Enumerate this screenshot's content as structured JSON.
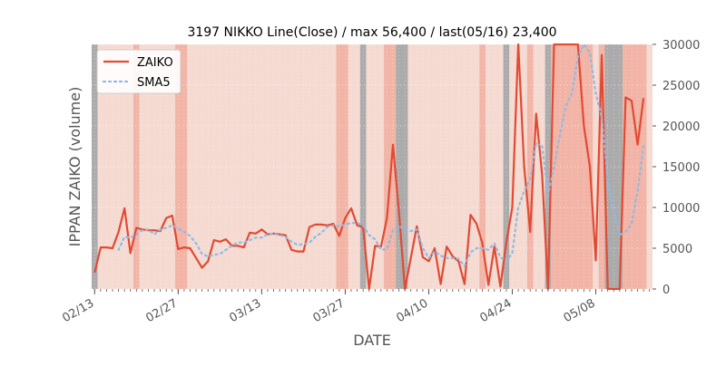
{
  "chart_data": {
    "type": "line",
    "title": "3197 NIKKO Line(Close) / max 56,400 / last(05/16) 23,400",
    "xlabel": "DATE",
    "ylabel": "IPPAN ZAIKO (volume)",
    "ylim": [
      0,
      30000
    ],
    "y_ticks": [
      0,
      5000,
      10000,
      15000,
      20000,
      25000,
      30000
    ],
    "y_tick_labels": [
      "0",
      "5000",
      "10000",
      "15000",
      "20000",
      "25000",
      "30000"
    ],
    "y_axis_side": "right",
    "x_start_date": "02/13",
    "x_end_date": "05/17",
    "x_tick_labels": [
      {
        "date": "02/13",
        "label": "02/13"
      },
      {
        "date": "02/27",
        "label": "02/27"
      },
      {
        "date": "03/13",
        "label": "03/13"
      },
      {
        "date": "03/27",
        "label": "03/27"
      },
      {
        "date": "04/10",
        "label": "04/10"
      },
      {
        "date": "04/24",
        "label": "04/24"
      },
      {
        "date": "05/08",
        "label": "05/08"
      }
    ],
    "legend_position": "top-left",
    "grid": true,
    "series": [
      {
        "name": "ZAIKO",
        "style": "solid",
        "color": "#E24A33",
        "points": [
          [
            "02/13",
            2000
          ],
          [
            "02/14",
            5100
          ],
          [
            "02/15",
            5100
          ],
          [
            "02/16",
            5000
          ],
          [
            "02/17",
            7000
          ],
          [
            "02/18",
            9900
          ],
          [
            "02/19",
            4400
          ],
          [
            "02/20",
            7500
          ],
          [
            "02/21",
            7300
          ],
          [
            "02/22",
            7200
          ],
          [
            "02/23",
            7200
          ],
          [
            "02/24",
            7100
          ],
          [
            "02/25",
            8700
          ],
          [
            "02/26",
            9000
          ],
          [
            "02/27",
            4900
          ],
          [
            "02/28",
            5100
          ],
          [
            "03/01",
            5000
          ],
          [
            "03/02",
            3800
          ],
          [
            "03/03",
            2600
          ],
          [
            "03/04",
            3400
          ],
          [
            "03/05",
            6000
          ],
          [
            "03/06",
            5800
          ],
          [
            "03/07",
            6100
          ],
          [
            "03/08",
            5300
          ],
          [
            "03/09",
            5300
          ],
          [
            "03/10",
            5100
          ],
          [
            "03/11",
            6900
          ],
          [
            "03/12",
            6800
          ],
          [
            "03/13",
            7300
          ],
          [
            "03/14",
            6700
          ],
          [
            "03/15",
            6800
          ],
          [
            "03/16",
            6700
          ],
          [
            "03/17",
            6600
          ],
          [
            "03/18",
            4800
          ],
          [
            "03/19",
            4600
          ],
          [
            "03/20",
            4600
          ],
          [
            "03/21",
            7600
          ],
          [
            "03/22",
            7900
          ],
          [
            "03/23",
            7900
          ],
          [
            "03/24",
            7800
          ],
          [
            "03/25",
            8000
          ],
          [
            "03/26",
            6500
          ],
          [
            "03/27",
            8700
          ],
          [
            "03/28",
            9900
          ],
          [
            "03/29",
            7800
          ],
          [
            "03/30",
            7600
          ],
          [
            "03/31",
            0
          ],
          [
            "04/01",
            5300
          ],
          [
            "04/02",
            5200
          ],
          [
            "04/03",
            8700
          ],
          [
            "04/04",
            17700
          ],
          [
            "04/05",
            9500
          ],
          [
            "04/06",
            0
          ],
          [
            "04/07",
            3800
          ],
          [
            "04/08",
            7700
          ],
          [
            "04/09",
            3900
          ],
          [
            "04/10",
            3400
          ],
          [
            "04/11",
            5000
          ],
          [
            "04/12",
            600
          ],
          [
            "04/13",
            5200
          ],
          [
            "04/14",
            4000
          ],
          [
            "04/15",
            3400
          ],
          [
            "04/16",
            600
          ],
          [
            "04/17",
            9100
          ],
          [
            "04/18",
            8000
          ],
          [
            "04/19",
            5600
          ],
          [
            "04/20",
            500
          ],
          [
            "04/21",
            5200
          ],
          [
            "04/22",
            300
          ],
          [
            "04/23",
            5700
          ],
          [
            "04/24",
            10000
          ],
          [
            "04/25",
            30000
          ],
          [
            "04/26",
            15000
          ],
          [
            "04/27",
            7000
          ],
          [
            "04/28",
            21500
          ],
          [
            "04/29",
            14000
          ],
          [
            "04/30",
            0
          ],
          [
            "05/01",
            30000
          ],
          [
            "05/02",
            30000
          ],
          [
            "05/03",
            30000
          ],
          [
            "05/04",
            30000
          ],
          [
            "05/05",
            30000
          ],
          [
            "05/06",
            20000
          ],
          [
            "05/07",
            15000
          ],
          [
            "05/08",
            3500
          ],
          [
            "05/09",
            28700
          ],
          [
            "05/10",
            0
          ],
          [
            "05/11",
            0
          ],
          [
            "05/12",
            0
          ],
          [
            "05/13",
            23500
          ],
          [
            "05/14",
            23100
          ],
          [
            "05/15",
            17700
          ],
          [
            "05/16",
            23400
          ]
        ]
      },
      {
        "name": "SMA5",
        "style": "dotted",
        "color": "#8EBAE5",
        "points": [
          [
            "02/17",
            4800
          ],
          [
            "02/18",
            6400
          ],
          [
            "02/19",
            6300
          ],
          [
            "02/20",
            6700
          ],
          [
            "02/21",
            7200
          ],
          [
            "02/22",
            7300
          ],
          [
            "02/23",
            6700
          ],
          [
            "02/24",
            7300
          ],
          [
            "02/25",
            7500
          ],
          [
            "02/26",
            7800
          ],
          [
            "02/27",
            7400
          ],
          [
            "02/28",
            7000
          ],
          [
            "03/01",
            6500
          ],
          [
            "03/02",
            5600
          ],
          [
            "03/03",
            4300
          ],
          [
            "03/04",
            4000
          ],
          [
            "03/05",
            4200
          ],
          [
            "03/06",
            4300
          ],
          [
            "03/07",
            4800
          ],
          [
            "03/08",
            5300
          ],
          [
            "03/09",
            5700
          ],
          [
            "03/10",
            5700
          ],
          [
            "03/11",
            6000
          ],
          [
            "03/12",
            6300
          ],
          [
            "03/13",
            6300
          ],
          [
            "03/14",
            6700
          ],
          [
            "03/15",
            6800
          ],
          [
            "03/16",
            6600
          ],
          [
            "03/17",
            6400
          ],
          [
            "03/18",
            5800
          ],
          [
            "03/19",
            5400
          ],
          [
            "03/20",
            5500
          ],
          [
            "03/21",
            5700
          ],
          [
            "03/22",
            6400
          ],
          [
            "03/23",
            6900
          ],
          [
            "03/24",
            7600
          ],
          [
            "03/25",
            7800
          ],
          [
            "03/26",
            7700
          ],
          [
            "03/27",
            7900
          ],
          [
            "03/28",
            8100
          ],
          [
            "03/29",
            8100
          ],
          [
            "03/30",
            7800
          ],
          [
            "03/31",
            6600
          ],
          [
            "04/01",
            6100
          ],
          [
            "04/02",
            4800
          ],
          [
            "04/03",
            4900
          ],
          [
            "04/04",
            7200
          ],
          [
            "04/05",
            7700
          ],
          [
            "04/06",
            7300
          ],
          [
            "04/07",
            7100
          ],
          [
            "04/08",
            7300
          ],
          [
            "04/09",
            5000
          ],
          [
            "04/10",
            3800
          ],
          [
            "04/11",
            4600
          ],
          [
            "04/12",
            4100
          ],
          [
            "04/13",
            3800
          ],
          [
            "04/14",
            3800
          ],
          [
            "04/15",
            3700
          ],
          [
            "04/16",
            2800
          ],
          [
            "04/17",
            4500
          ],
          [
            "04/18",
            5000
          ],
          [
            "04/19",
            5000
          ],
          [
            "04/20",
            4800
          ],
          [
            "04/21",
            5600
          ],
          [
            "04/22",
            3900
          ],
          [
            "04/23",
            3400
          ],
          [
            "04/24",
            4400
          ],
          [
            "04/25",
            10000
          ],
          [
            "04/26",
            12000
          ],
          [
            "04/27",
            13500
          ],
          [
            "04/28",
            17900
          ],
          [
            "04/29",
            17500
          ],
          [
            "04/30",
            11500
          ],
          [
            "05/01",
            15000
          ],
          [
            "05/02",
            19000
          ],
          [
            "05/03",
            22500
          ],
          [
            "05/04",
            24000
          ],
          [
            "05/05",
            28500
          ],
          [
            "05/06",
            30000
          ],
          [
            "05/07",
            29000
          ],
          [
            "05/08",
            24000
          ],
          [
            "05/09",
            21000
          ],
          [
            "05/10",
            13500
          ],
          [
            "05/11",
            9500
          ],
          [
            "05/12",
            6600
          ],
          [
            "05/13",
            7000
          ],
          [
            "05/14",
            8000
          ],
          [
            "05/15",
            12000
          ],
          [
            "05/16",
            17500
          ]
        ]
      }
    ],
    "background_bands": [
      {
        "start": "02/13",
        "end": "02/13",
        "shade": "gray"
      },
      {
        "start": "02/14",
        "end": "02/19",
        "shade": "light"
      },
      {
        "start": "02/20",
        "end": "02/20",
        "shade": "medium"
      },
      {
        "start": "02/21",
        "end": "02/26",
        "shade": "light"
      },
      {
        "start": "02/27",
        "end": "02/28",
        "shade": "medium"
      },
      {
        "start": "03/01",
        "end": "03/25",
        "shade": "light"
      },
      {
        "start": "03/26",
        "end": "03/27",
        "shade": "medium"
      },
      {
        "start": "03/28",
        "end": "03/29",
        "shade": "light"
      },
      {
        "start": "03/30",
        "end": "03/30",
        "shade": "gray"
      },
      {
        "start": "03/31",
        "end": "04/02",
        "shade": "light"
      },
      {
        "start": "04/03",
        "end": "04/04",
        "shade": "medium"
      },
      {
        "start": "04/05",
        "end": "04/06",
        "shade": "gray"
      },
      {
        "start": "04/07",
        "end": "04/18",
        "shade": "light"
      },
      {
        "start": "04/19",
        "end": "04/19",
        "shade": "medium"
      },
      {
        "start": "04/20",
        "end": "04/22",
        "shade": "light"
      },
      {
        "start": "04/23",
        "end": "04/23",
        "shade": "gray"
      },
      {
        "start": "04/24",
        "end": "04/26",
        "shade": "light"
      },
      {
        "start": "04/27",
        "end": "04/27",
        "shade": "medium"
      },
      {
        "start": "04/28",
        "end": "04/29",
        "shade": "light"
      },
      {
        "start": "04/30",
        "end": "04/30",
        "shade": "gray"
      },
      {
        "start": "05/01",
        "end": "05/07",
        "shade": "medium"
      },
      {
        "start": "05/08",
        "end": "05/08",
        "shade": "light"
      },
      {
        "start": "05/09",
        "end": "05/09",
        "shade": "medium"
      },
      {
        "start": "05/10",
        "end": "05/12",
        "shade": "gray"
      },
      {
        "start": "05/13",
        "end": "05/16",
        "shade": "medium"
      },
      {
        "start": "05/17",
        "end": "05/17",
        "shade": "light"
      }
    ],
    "shade_colors": {
      "light": "#F5DAD2",
      "medium": "#F2B4A6",
      "gray": "#ABABAB"
    }
  }
}
